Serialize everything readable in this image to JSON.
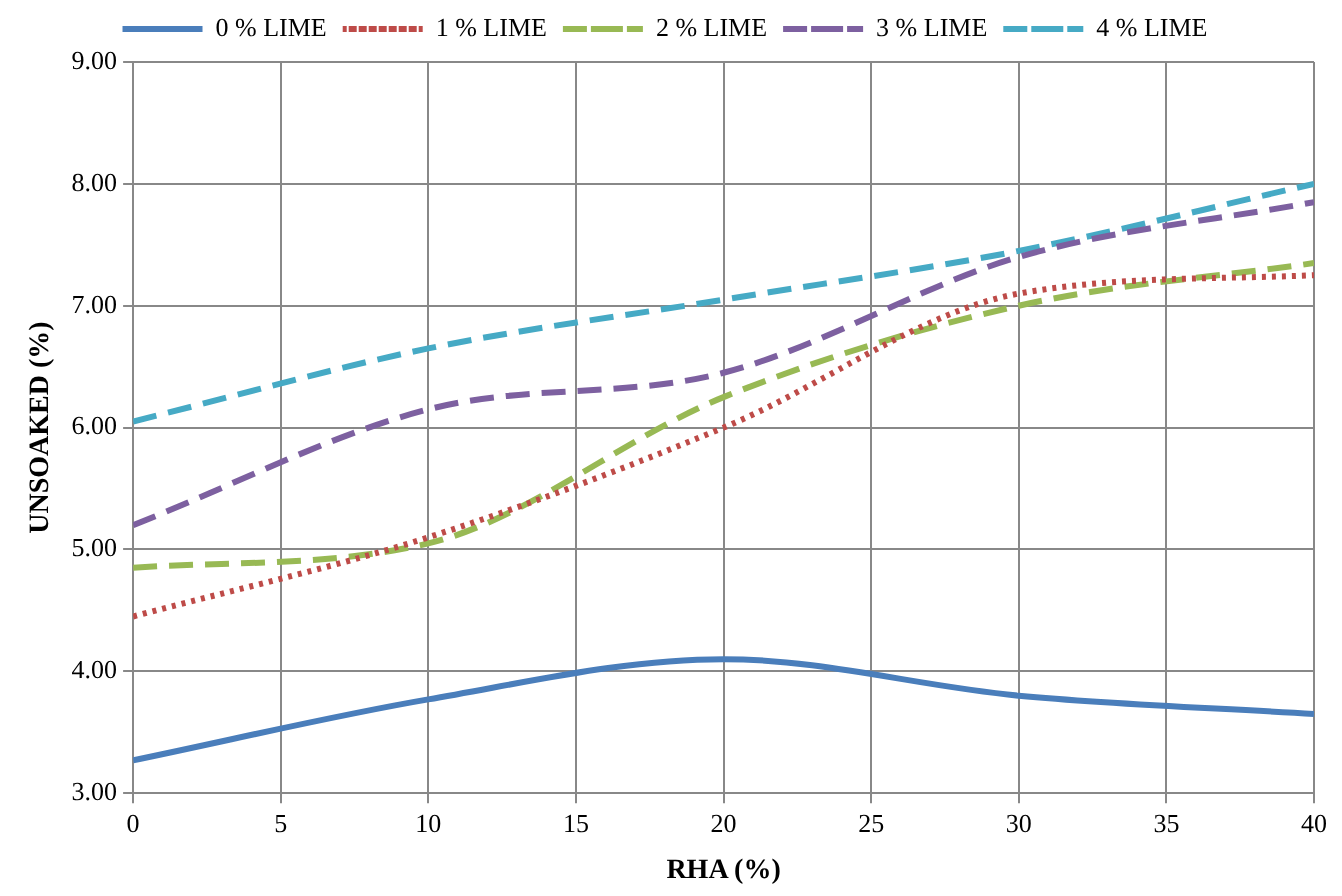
{
  "chart_data": {
    "type": "line",
    "xlabel": "RHA (%)",
    "ylabel": "UNSOAKED (%)",
    "x": [
      0,
      10,
      20,
      30,
      40
    ],
    "series": [
      {
        "name": "0 % LIME",
        "color": "#4a7ebb",
        "values": [
          3.27,
          3.77,
          4.1,
          3.8,
          3.65
        ],
        "line_style": "solid"
      },
      {
        "name": "1 % LIME",
        "color": "#be4b48",
        "values": [
          4.45,
          5.1,
          6.0,
          7.1,
          7.25
        ],
        "line_style": "dotted"
      },
      {
        "name": "2 % LIME",
        "color": "#98b954",
        "values": [
          4.85,
          5.05,
          6.25,
          7.0,
          7.35
        ],
        "line_style": "dashed"
      },
      {
        "name": "3 % LIME",
        "color": "#7d60a0",
        "values": [
          5.2,
          6.15,
          6.45,
          7.4,
          7.85
        ],
        "line_style": "dashed"
      },
      {
        "name": "4 % LIME",
        "color": "#46aac5",
        "values": [
          6.05,
          6.65,
          7.05,
          7.45,
          8.0
        ],
        "line_style": "dashed"
      }
    ],
    "xlim": [
      0,
      40
    ],
    "xticks": [
      0,
      5,
      10,
      15,
      20,
      25,
      30,
      35,
      40
    ],
    "ylim": [
      3,
      9
    ],
    "yticks": [
      {
        "value": 3,
        "label": "3.00"
      },
      {
        "value": 4,
        "label": "4.00"
      },
      {
        "value": 5,
        "label": "5.00"
      },
      {
        "value": 6,
        "label": "6.00"
      },
      {
        "value": 7,
        "label": "7.00"
      },
      {
        "value": 8,
        "label": "8.00"
      },
      {
        "value": 9,
        "label": "9.00"
      }
    ],
    "grid": true,
    "legend": "top",
    "marker": "none"
  }
}
